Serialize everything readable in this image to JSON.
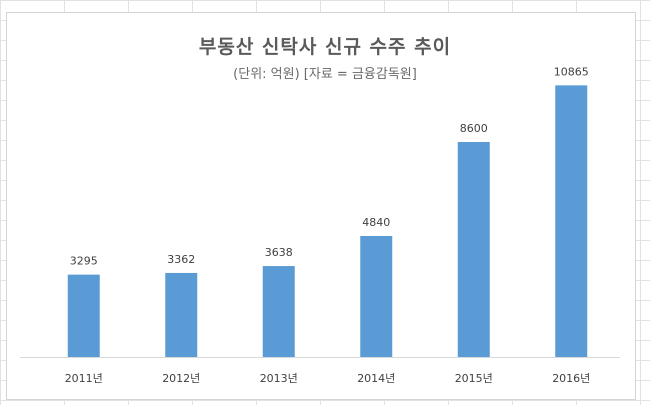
{
  "chart_data": {
    "type": "bar",
    "title": "부동산 신탁사 신규 수주 추이",
    "subtitle": "(단위: 억원) [자료 = 금융감독원]",
    "categories": [
      "2011년",
      "2012년",
      "2013년",
      "2014년",
      "2015년",
      "2016년"
    ],
    "values": [
      3295,
      3362,
      3638,
      4840,
      8600,
      10865
    ],
    "ylim": [
      0,
      12000
    ],
    "grid": false,
    "legend": "none",
    "bar_color": "#5b9bd5"
  }
}
